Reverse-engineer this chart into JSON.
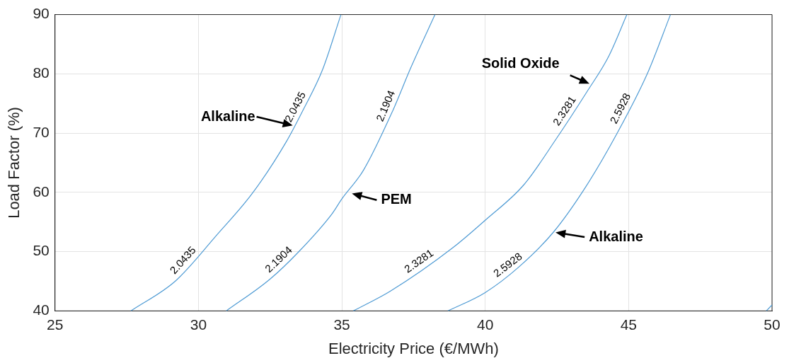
{
  "chart_data": {
    "type": "line",
    "xlabel": "Electricity Price (€/MWh)",
    "ylabel": "Load Factor (%)",
    "xlim": [
      25,
      50
    ],
    "xticks": [
      25,
      30,
      35,
      40,
      45,
      50
    ],
    "ylim": [
      40,
      90
    ],
    "yticks": [
      40,
      50,
      60,
      70,
      80,
      90
    ],
    "grid": true,
    "legend": false,
    "marker": "none",
    "line_style": "solid",
    "series": [
      {
        "name": "2.0435",
        "color": "#4f9bd4",
        "x": [
          27.64,
          29.21,
          30.64,
          31.89,
          33.07,
          33.65,
          34.32,
          34.97
        ],
        "values": [
          40,
          45.1,
          52.8,
          59.9,
          68.6,
          73.9,
          80.6,
          90
        ]
      },
      {
        "name": "2.1904",
        "color": "#4f9bd4",
        "x": [
          30.97,
          32.48,
          33.48,
          34.66,
          35.0,
          35.75,
          36.75,
          37.42,
          38.25
        ],
        "values": [
          40,
          45.3,
          49.9,
          56.4,
          58.9,
          63.7,
          73.5,
          81.2,
          90
        ]
      },
      {
        "name": "2.3281",
        "color": "#4f9bd4",
        "x": [
          35.4,
          36.68,
          38.88,
          40.0,
          41.35,
          42.43,
          43.55,
          44.31,
          44.94
        ],
        "values": [
          40,
          43.3,
          50.7,
          55.3,
          61.3,
          68.7,
          77.0,
          83.0,
          90
        ]
      },
      {
        "name": "2.5928",
        "color": "#4f9bd4",
        "x": [
          38.7,
          40.0,
          41.17,
          42.38,
          43.5,
          44.58,
          45.65,
          46.46
        ],
        "values": [
          40,
          43.1,
          47.4,
          53.3,
          60.9,
          69.8,
          80.0,
          90
        ]
      },
      {
        "color": "#4f9bd4",
        "x": [
          49.8,
          50
        ],
        "values": [
          40,
          41
        ]
      }
    ],
    "annotations": [
      {
        "text": "Alkaline",
        "x": 33.36,
        "y": 71.2
      },
      {
        "text": "PEM",
        "x": 35.28,
        "y": 59.9
      },
      {
        "text": "Solid Oxide",
        "x": 43.7,
        "y": 78.2
      },
      {
        "text": "Alkaline",
        "x": 42.38,
        "y": 53.3
      }
    ]
  }
}
